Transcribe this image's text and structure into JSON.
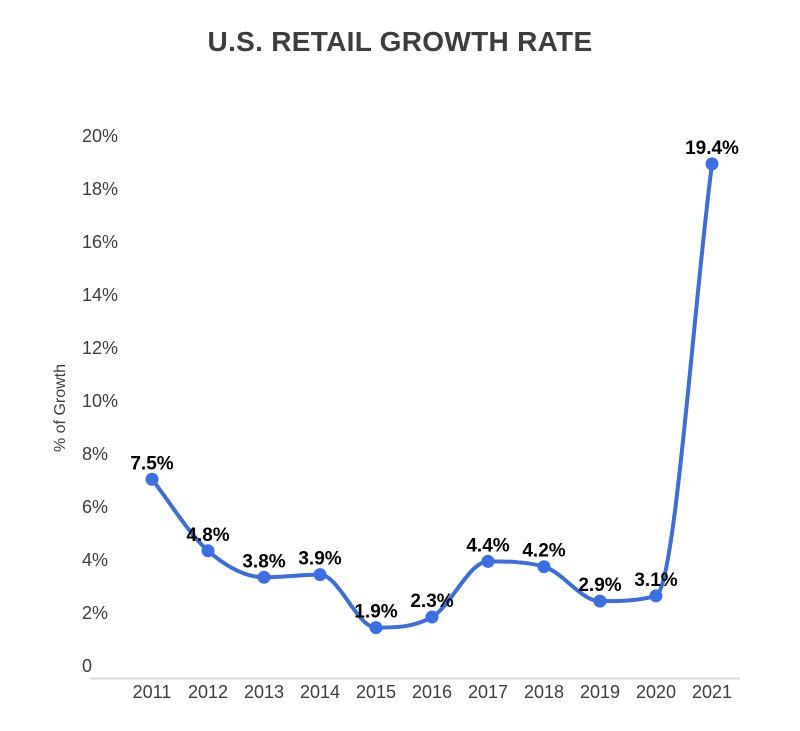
{
  "chart_data": {
    "type": "line",
    "title": "U.S. RETAIL GROWTH RATE",
    "xlabel": "",
    "ylabel": "% of Growth",
    "categories": [
      "2011",
      "2012",
      "2013",
      "2014",
      "2015",
      "2016",
      "2017",
      "2018",
      "2019",
      "2020",
      "2021"
    ],
    "values": [
      7.5,
      4.8,
      3.8,
      3.9,
      1.9,
      2.3,
      4.4,
      4.2,
      2.9,
      3.1,
      19.4
    ],
    "data_labels": [
      "7.5%",
      "4.8%",
      "3.8%",
      "3.9%",
      "1.9%",
      "2.3%",
      "4.4%",
      "4.2%",
      "2.9%",
      "3.1%",
      "19.4%"
    ],
    "ylim": [
      0,
      20
    ],
    "y_ticks": [
      0,
      2,
      4,
      6,
      8,
      10,
      12,
      14,
      16,
      18,
      20
    ],
    "y_tick_labels": [
      "0",
      "2%",
      "4%",
      "6%",
      "8%",
      "10%",
      "12%",
      "14%",
      "16%",
      "18%",
      "20%"
    ],
    "grid": false,
    "legend": "none",
    "smooth": true,
    "colors": {
      "background": "#ffffff",
      "line": "#3e6ed3",
      "point": "#3c70e0",
      "axis_line": "#dadada",
      "title_text": "#3d3d3d",
      "tick_text": "#3d3d3d",
      "data_label_text": "#000000"
    }
  }
}
